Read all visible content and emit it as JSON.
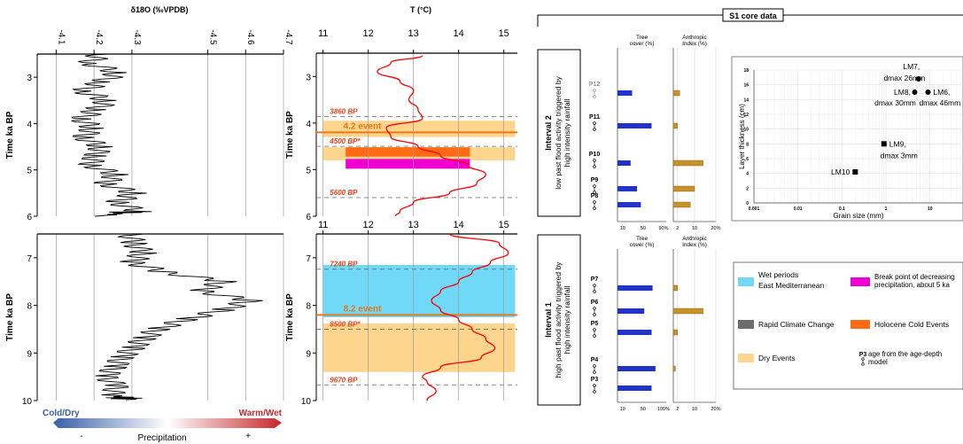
{
  "chart_data": [
    {
      "type": "line",
      "title": "δ18O (‰VPDB)",
      "ylabel": "Time ka BP",
      "x_ticks": [
        "-4.1",
        "-4.2",
        "-4.3",
        "-4.5",
        "-4.6",
        "-4.7"
      ],
      "x_tick_values": [
        -4.1,
        -4.2,
        -4.3,
        -4.5,
        -4.6,
        -4.7
      ],
      "xlim": [
        -4.05,
        -4.7
      ],
      "panels": [
        {
          "ylim": [
            2.5,
            6
          ],
          "y_ticks": [
            "3",
            "4",
            "5",
            "6"
          ]
        },
        {
          "ylim": [
            6.5,
            10
          ],
          "y_ticks": [
            "7",
            "8",
            "9",
            "10"
          ]
        }
      ],
      "series": [
        {
          "x": [
            2.5,
            2.7,
            2.9,
            3.1,
            3.3,
            3.5,
            3.7,
            3.9,
            4.1,
            4.3,
            4.5,
            4.7,
            4.9,
            5.1,
            5.3,
            5.5,
            5.7,
            5.9,
            6.0,
            6.5,
            6.7,
            6.9,
            7.1,
            7.3,
            7.5,
            7.7,
            7.9,
            8.1,
            8.3,
            8.5,
            8.7,
            8.9,
            9.1,
            9.3,
            9.5,
            9.7,
            9.9,
            10.0
          ],
          "values": [
            -4.22,
            -4.18,
            -4.25,
            -4.2,
            -4.15,
            -4.22,
            -4.2,
            -4.17,
            -4.21,
            -4.19,
            -4.24,
            -4.22,
            -4.2,
            -4.26,
            -4.22,
            -4.29,
            -4.24,
            -4.3,
            -4.22,
            -4.3,
            -4.32,
            -4.35,
            -4.32,
            -4.4,
            -4.55,
            -4.48,
            -4.6,
            -4.52,
            -4.42,
            -4.35,
            -4.32,
            -4.3,
            -4.28,
            -4.27,
            -4.25,
            -4.28,
            -4.26,
            -4.3
          ]
        }
      ],
      "legend_bar": {
        "left": "Cold/Dry",
        "right": "Warm/Wet",
        "caption": "Precipitation",
        "minus": "-",
        "plus": "+",
        "left_color": "#3a5ea8",
        "right_color": "#c6282b"
      }
    },
    {
      "type": "line",
      "title": "T (°C)",
      "ylabel": "Time ka BP",
      "x_ticks": [
        "11",
        "12",
        "13",
        "14",
        "15"
      ],
      "x_tick_values": [
        11,
        12,
        13,
        14,
        15
      ],
      "xlim": [
        10.85,
        15.3
      ],
      "panels": [
        {
          "ylim": [
            2.5,
            6
          ],
          "y_ticks": [
            "3",
            "4",
            "5",
            "6"
          ]
        },
        {
          "ylim": [
            6.5,
            10
          ],
          "y_ticks": [
            "7",
            "8",
            "9",
            "10"
          ]
        }
      ],
      "series": [
        {
          "x": [
            2.55,
            2.7,
            2.9,
            3.1,
            3.3,
            3.5,
            3.7,
            3.9,
            4.1,
            4.3,
            4.5,
            4.7,
            4.9,
            5.1,
            5.3,
            5.5,
            5.7,
            5.9,
            6.0,
            6.5,
            6.7,
            6.9,
            7.1,
            7.3,
            7.5,
            7.7,
            7.9,
            8.1,
            8.3,
            8.5,
            8.7,
            8.9,
            9.1,
            9.3,
            9.5,
            9.6,
            9.8,
            10.0
          ],
          "values": [
            13.2,
            12.5,
            12.2,
            12.7,
            13.0,
            12.9,
            13.1,
            13.2,
            12.4,
            12.5,
            13.1,
            13.6,
            14.2,
            14.6,
            14.4,
            13.8,
            13.0,
            12.7,
            12.6,
            13.8,
            14.9,
            15.1,
            14.7,
            14.3,
            14.0,
            13.6,
            13.4,
            13.6,
            14.0,
            14.3,
            14.6,
            14.8,
            14.5,
            13.6,
            13.2,
            13.3,
            13.5,
            13.3
          ]
        }
      ],
      "events": [
        {
          "label": "3860 BP",
          "time": 3.86,
          "kind": "dashed"
        },
        {
          "label": "4.2 event",
          "time": 4.2,
          "kind": "event"
        },
        {
          "label": "4500 BP*",
          "time": 4.5,
          "kind": "dashed"
        },
        {
          "label": "5600 BP",
          "time": 5.6,
          "kind": "dashed"
        },
        {
          "label": "7240 BP",
          "time": 7.24,
          "kind": "dashed"
        },
        {
          "label": "8.2 event",
          "time": 8.2,
          "kind": "event"
        },
        {
          "label": "8500 BP*",
          "time": 8.5,
          "kind": "dashed"
        },
        {
          "label": "9670 BP",
          "time": 9.67,
          "kind": "dashed"
        }
      ],
      "bands": [
        {
          "kind": "dry",
          "from": 3.95,
          "to": 4.3
        },
        {
          "kind": "dry",
          "from": 4.52,
          "to": 4.8
        },
        {
          "kind": "holocene-cold",
          "from": 4.52,
          "to": 4.72,
          "x_from": 11.5,
          "x_to": 14.25
        },
        {
          "kind": "break-point",
          "from": 4.77,
          "to": 4.98,
          "x_from": 11.5,
          "x_to": 14.25
        },
        {
          "kind": "wet",
          "from": 7.15,
          "to": 8.25
        },
        {
          "kind": "dry",
          "from": 8.38,
          "to": 9.4
        }
      ]
    },
    {
      "type": "bar",
      "title": "S1 core data",
      "intervals": [
        {
          "title": "Interval 2",
          "text": [
            "low past flood activity triggered by",
            "high intensity rainfall"
          ]
        },
        {
          "title": "Interval 1",
          "text": [
            "high past flood activity triggered by",
            "high intensity rainfall"
          ]
        }
      ],
      "tree_header": [
        "Tree",
        "cover (%)"
      ],
      "anthropic_header": [
        "Anthropic",
        "Index (%)"
      ],
      "upper": {
        "samples": [
          "P12",
          "P11",
          "P10",
          "P9",
          "P8"
        ],
        "tree_cover": [
          30,
          70,
          27,
          40,
          48
        ],
        "anthropic": [
          3,
          2,
          14,
          10,
          8
        ],
        "tree_ticks": [
          "10",
          "50",
          "90%"
        ],
        "anthropic_ticks": [
          "2",
          "10",
          "20%"
        ]
      },
      "lower": {
        "samples": [
          "P7",
          "P6",
          "P5",
          "P4",
          "P3"
        ],
        "tree_cover": [
          72,
          55,
          70,
          78,
          70
        ],
        "anthropic": [
          2,
          14,
          2,
          1,
          0
        ],
        "tree_ticks": [
          "10",
          "50",
          "100%"
        ],
        "anthropic_ticks": [
          "2",
          "10",
          "20%"
        ]
      }
    },
    {
      "type": "scatter",
      "xlabel": "Grain size (mm)",
      "ylabel": "Layer thickness (cm)",
      "x_scale": "log",
      "x_ticks": [
        "0.001",
        "0.01",
        "0.1",
        "1",
        "10",
        "10"
      ],
      "y_ticks": [
        "0",
        "2",
        "4",
        "6",
        "8",
        "10",
        "12",
        "14",
        "16",
        "18"
      ],
      "ylim": [
        0,
        18
      ],
      "points": [
        {
          "label": "LM7,",
          "sub": "dmax 26mm",
          "x": 5.5,
          "y": 16.8,
          "marker": "circle"
        },
        {
          "label": "LM8,",
          "sub": "dmax 30mm",
          "x": 4.5,
          "y": 15,
          "marker": "circle"
        },
        {
          "label": "LM6,",
          "sub": "dmax 46mm",
          "x": 9,
          "y": 15,
          "marker": "circle"
        },
        {
          "label": "LM9,",
          "sub": "dmax 3mm",
          "x": 0.9,
          "y": 8,
          "marker": "square"
        },
        {
          "label": "LM10",
          "sub": "",
          "x": 0.2,
          "y": 4.2,
          "marker": "square"
        }
      ]
    }
  ],
  "legend": {
    "items": [
      {
        "label": [
          "Wet periods",
          "East Mediterranean"
        ],
        "color": "#6fd9f7"
      },
      {
        "label": [
          "Break point of decreasing",
          "precipitation, about 5 ka"
        ],
        "color": "#f000d0"
      },
      {
        "label": [
          "Rapid Climate Change"
        ],
        "color": "#6d6d6d"
      },
      {
        "label": [
          "Holocene Cold Events"
        ],
        "color": "#ff6a13"
      },
      {
        "label": [
          "Dry Events"
        ],
        "color": "#fdd58c"
      },
      {
        "label": [
          "age from the age-depth",
          "model"
        ],
        "color": "",
        "symbol_label": "P3"
      }
    ]
  },
  "colors": {
    "dry": "#fdd58c",
    "wet": "#6fd9f7",
    "holocene_cold": "#ff6a13",
    "break_point": "#f000d0",
    "event_line": "#e8781a",
    "temp_line": "#ff0000",
    "bar_blue": "#2233c8",
    "bar_gold": "#c8922a",
    "event_text": "#e8401a"
  }
}
